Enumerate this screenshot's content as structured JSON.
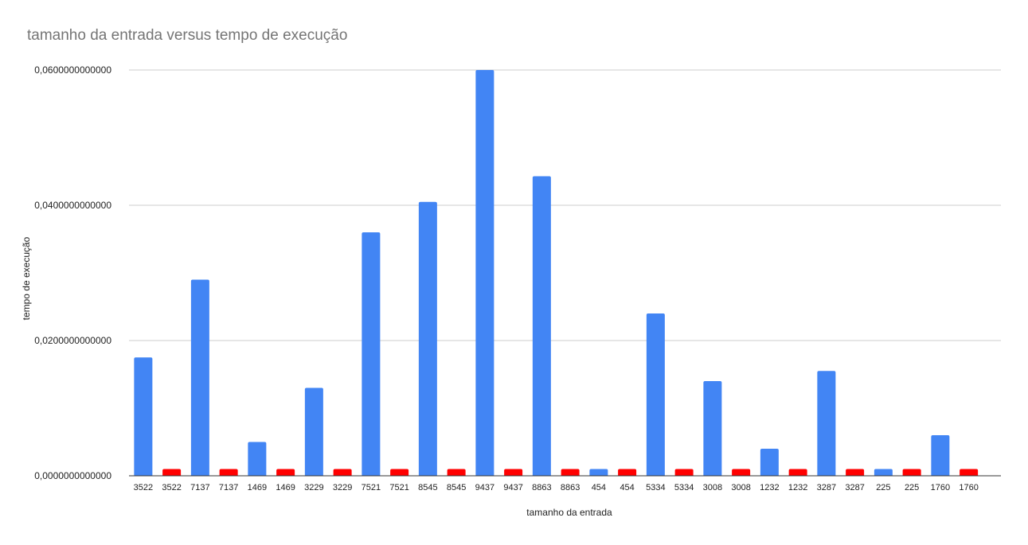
{
  "chart_data": {
    "type": "bar",
    "title": "tamanho da entrada versus tempo de execução",
    "xlabel": "tamanho da entrada",
    "ylabel": "tempo de execução",
    "ylim": [
      0,
      0.06
    ],
    "y_ticks": [
      0,
      0.02,
      0.04,
      0.06
    ],
    "y_tick_labels": [
      "0,0000000000000",
      "0,0200000000000",
      "0,0400000000000",
      "0,0600000000000"
    ],
    "grid": true,
    "categories": [
      "3522",
      "3522",
      "7137",
      "7137",
      "1469",
      "1469",
      "3229",
      "3229",
      "7521",
      "7521",
      "8545",
      "8545",
      "9437",
      "9437",
      "8863",
      "8863",
      "454",
      "454",
      "5334",
      "5334",
      "3008",
      "3008",
      "1232",
      "1232",
      "3287",
      "3287",
      "225",
      "225",
      "1760",
      "1760"
    ],
    "values": [
      0.0175,
      0.001,
      0.029,
      0.001,
      0.005,
      0.001,
      0.013,
      0.001,
      0.036,
      0.001,
      0.0405,
      0.001,
      0.06,
      0.001,
      0.0443,
      0.001,
      0.001,
      0.001,
      0.024,
      0.001,
      0.014,
      0.001,
      0.004,
      0.001,
      0.0155,
      0.001,
      0.001,
      0.001,
      0.006,
      0.001
    ],
    "bar_colors": [
      "#4285F4",
      "#FF0000"
    ]
  }
}
